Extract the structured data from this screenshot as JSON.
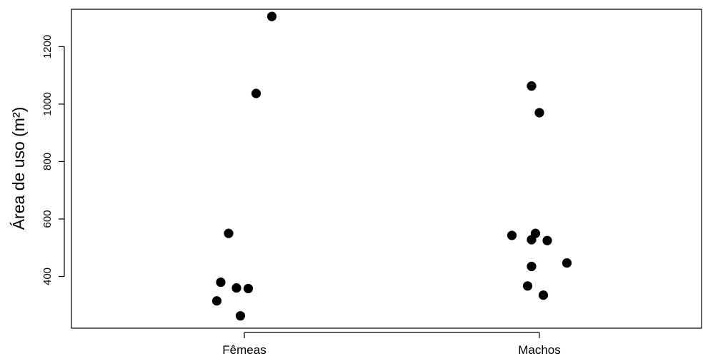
{
  "chart_data": {
    "type": "scatter",
    "title": "",
    "xlabel": "",
    "ylabel": "Área de uso (m²)",
    "categories": [
      "Fêmeas",
      "Machos"
    ],
    "yticks": [
      400,
      600,
      800,
      1000,
      1200
    ],
    "ylim": [
      220,
      1330
    ],
    "grid": false,
    "legend": "none",
    "point_color": "#000000",
    "series": [
      {
        "category": "Fêmeas",
        "points": [
          {
            "jitter": -0.07,
            "y": 315
          },
          {
            "jitter": -0.06,
            "y": 380
          },
          {
            "jitter": -0.04,
            "y": 550
          },
          {
            "jitter": -0.02,
            "y": 360
          },
          {
            "jitter": -0.01,
            "y": 263
          },
          {
            "jitter": 0.01,
            "y": 358
          },
          {
            "jitter": 0.03,
            "y": 1037
          },
          {
            "jitter": 0.07,
            "y": 1305
          }
        ]
      },
      {
        "category": "Machos",
        "points": [
          {
            "jitter": -0.07,
            "y": 543
          },
          {
            "jitter": -0.03,
            "y": 367
          },
          {
            "jitter": -0.02,
            "y": 1063
          },
          {
            "jitter": -0.02,
            "y": 528
          },
          {
            "jitter": -0.02,
            "y": 435
          },
          {
            "jitter": -0.01,
            "y": 550
          },
          {
            "jitter": 0.0,
            "y": 970
          },
          {
            "jitter": 0.01,
            "y": 335
          },
          {
            "jitter": 0.02,
            "y": 525
          },
          {
            "jitter": 0.07,
            "y": 447
          }
        ]
      }
    ]
  }
}
